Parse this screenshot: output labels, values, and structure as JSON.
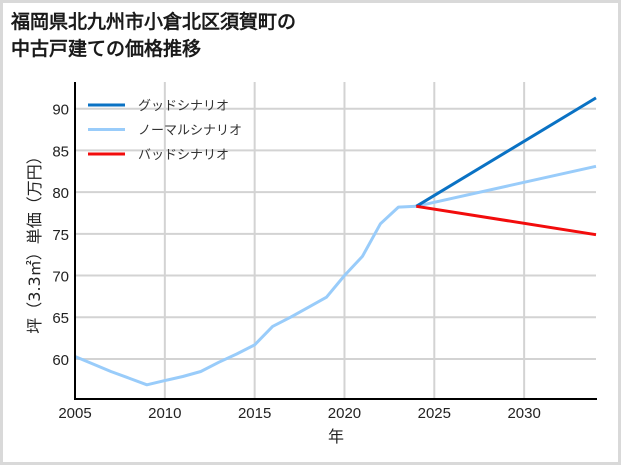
{
  "title_lines": [
    "福岡県北九州市小倉北区須賀町の",
    "中古戸建ての価格推移"
  ],
  "chart_data": {
    "type": "line",
    "title": "福岡県北九州市小倉北区須賀町の中古戸建ての価格推移",
    "xlabel": "年",
    "ylabel": "坪（3.3㎡）単価（万円）",
    "xlim": [
      2005,
      2034
    ],
    "ylim": [
      55.2,
      93.2
    ],
    "xticks": [
      2005,
      2010,
      2015,
      2020,
      2025,
      2030
    ],
    "yticks": [
      60,
      65,
      70,
      75,
      80,
      85,
      90
    ],
    "grid": true,
    "legend_position": "upper left",
    "series": [
      {
        "name": "グッドシナリオ",
        "color": "#0a72c4",
        "x": [
          2024,
          2034
        ],
        "values": [
          78.3,
          91.3
        ]
      },
      {
        "name": "ノーマルシナリオ",
        "color": "#99ccfa",
        "x": [
          2005,
          2006,
          2007,
          2008,
          2009,
          2010,
          2011,
          2012,
          2013,
          2014,
          2015,
          2016,
          2017,
          2018,
          2019,
          2020,
          2021,
          2022,
          2023,
          2024,
          2034
        ],
        "values": [
          60.3,
          59.4,
          58.5,
          57.7,
          56.9,
          57.4,
          57.9,
          58.5,
          59.6,
          60.6,
          61.7,
          63.9,
          65.0,
          66.2,
          67.4,
          70.0,
          72.3,
          76.2,
          78.2,
          78.3,
          83.1
        ]
      },
      {
        "name": "バッドシナリオ",
        "color": "#f20c0c",
        "x": [
          2024,
          2034
        ],
        "values": [
          78.3,
          74.9
        ]
      }
    ]
  },
  "colors": {
    "grid": "#d3d3d3",
    "axis": "#000000",
    "frame": "#d9d9d9"
  }
}
